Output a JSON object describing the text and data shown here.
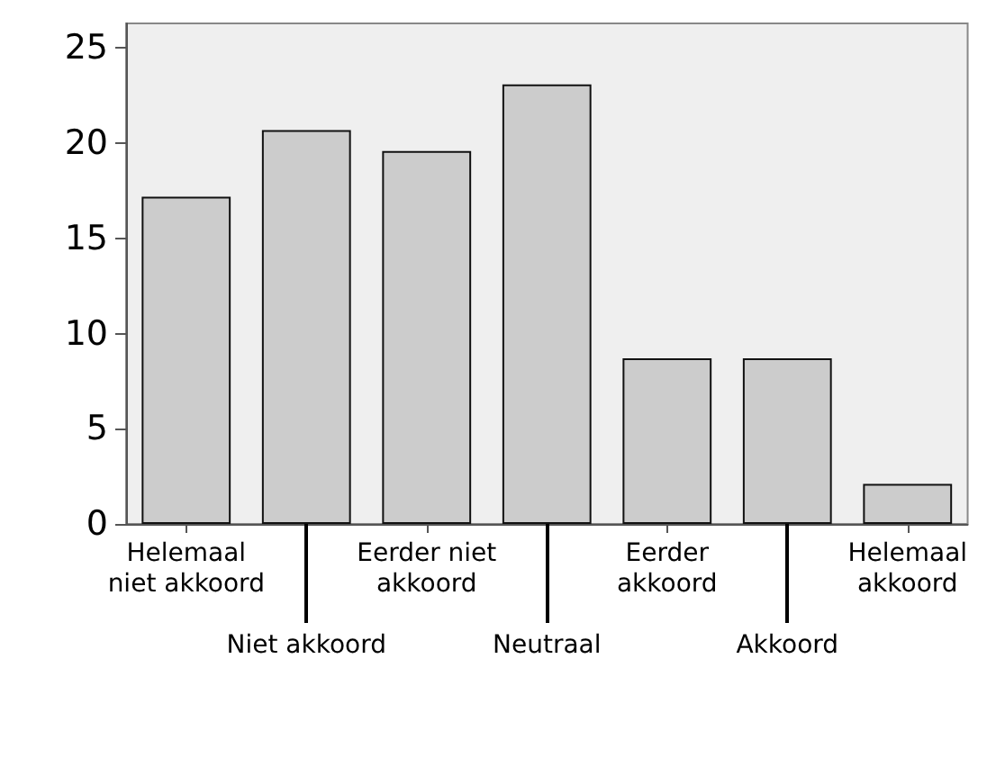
{
  "chart_data": {
    "type": "bar",
    "categories": [
      "Helemaal niet akkoord",
      "Niet akkoord",
      "Eerder niet akkoord",
      "Neutraal",
      "Eerder akkoord",
      "Akkoord",
      "Helemaal akkoord"
    ],
    "values": [
      17.2,
      20.7,
      19.6,
      23.1,
      8.7,
      8.7,
      2.1
    ],
    "color": "#cccccc",
    "ylim": [
      0,
      26.3
    ],
    "yticks": [
      0,
      5,
      10,
      15,
      20,
      25
    ],
    "grid": false
  }
}
